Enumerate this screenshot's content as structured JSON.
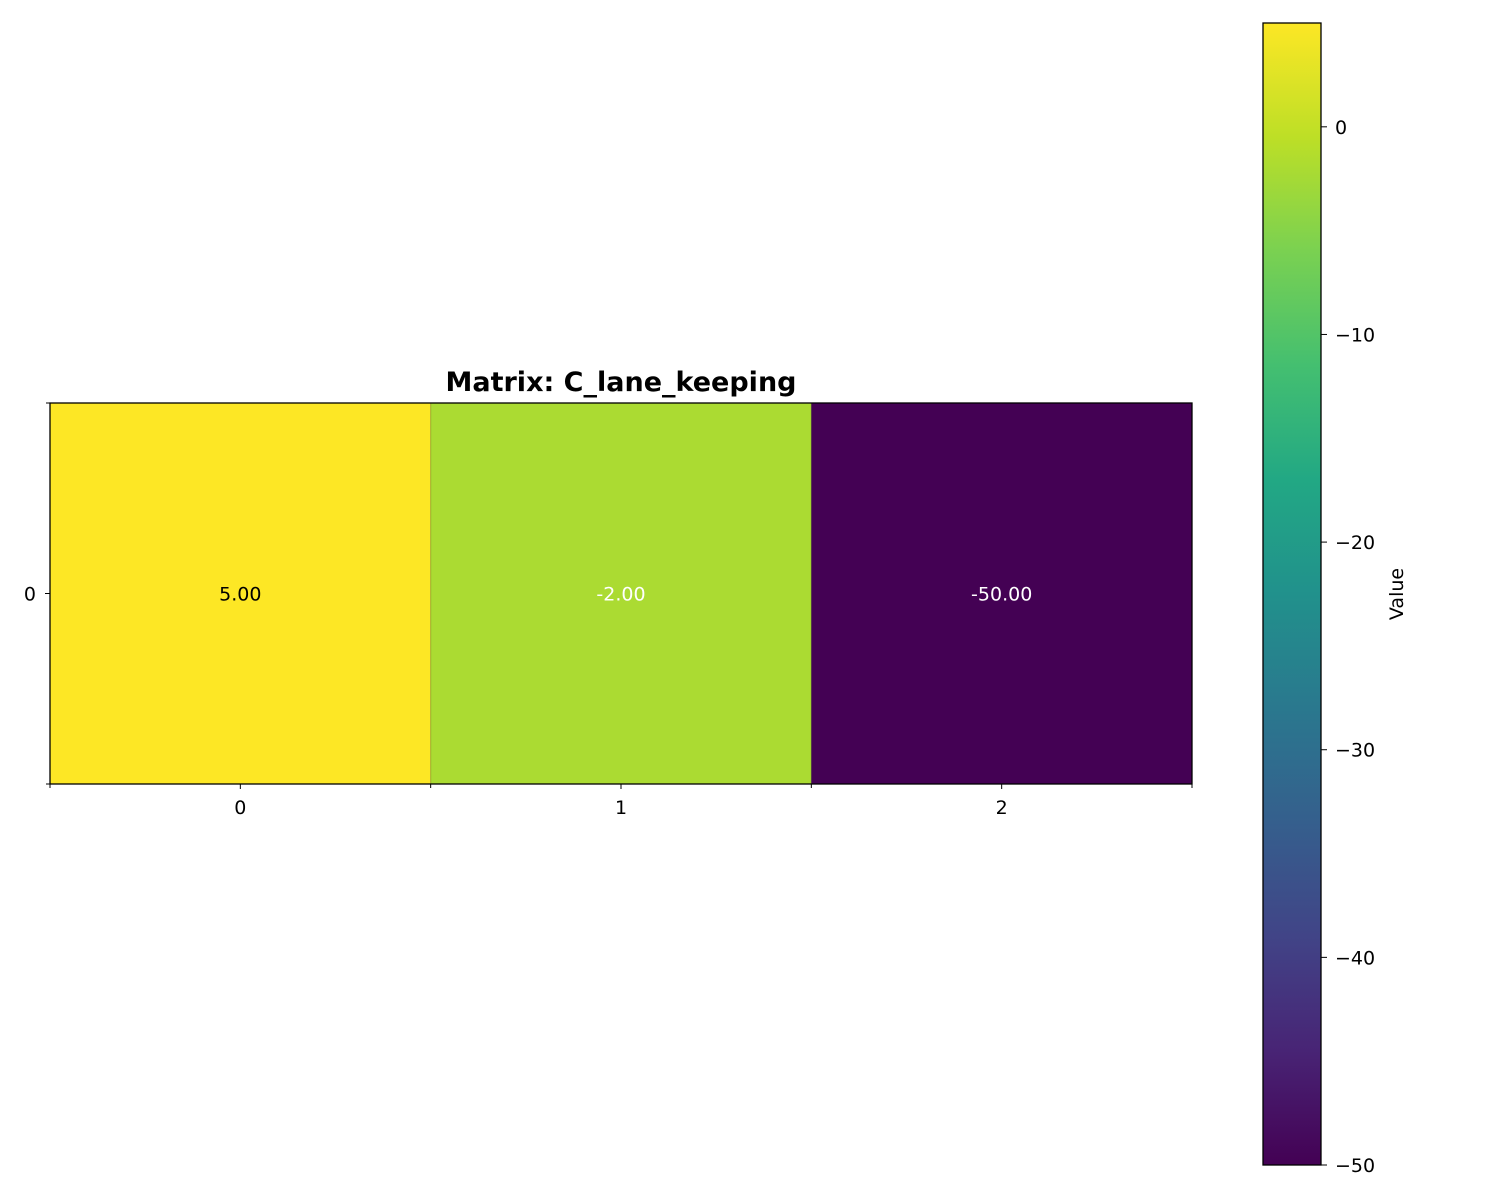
{
  "chart_data": {
    "type": "heatmap",
    "title": "Matrix: C_lane_keeping",
    "rows": [
      "0"
    ],
    "columns": [
      "0",
      "1",
      "2"
    ],
    "values": [
      [
        5.0,
        -2.0,
        -50.0
      ]
    ],
    "cell_labels": [
      [
        "5.00",
        "-2.00",
        "-50.00"
      ]
    ],
    "colormap": "viridis",
    "colorbar": {
      "label": "Value",
      "range": [
        -50,
        5
      ],
      "ticks": [
        0,
        -10,
        -20,
        -30,
        -40,
        -50
      ],
      "tick_labels": [
        "0",
        "−10",
        "−20",
        "−30",
        "−40",
        "−50"
      ]
    },
    "grid": false
  }
}
